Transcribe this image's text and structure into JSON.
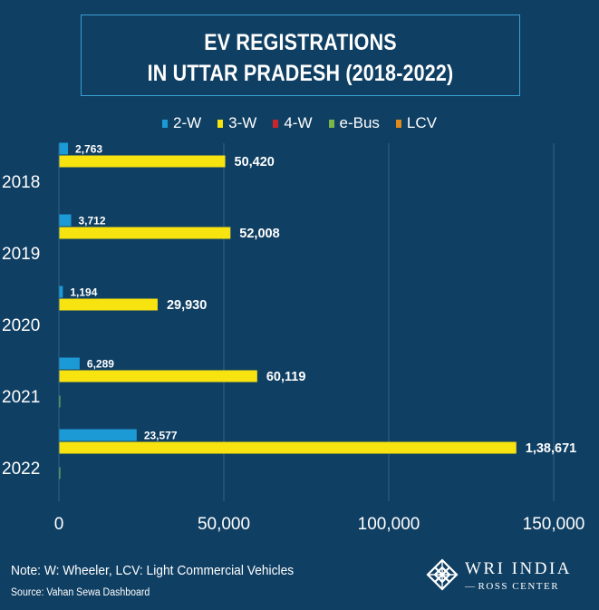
{
  "title": {
    "line1": "EV REGISTRATIONS",
    "line2": "IN UTTAR PRADESH (2018-2022)"
  },
  "legend": [
    {
      "label": "2-W",
      "color": "#1b9ad6"
    },
    {
      "label": "3-W",
      "color": "#f7e30f"
    },
    {
      "label": "4-W",
      "color": "#c8252c"
    },
    {
      "label": "e-Bus",
      "color": "#7ab648"
    },
    {
      "label": "LCV",
      "color": "#e08a1e"
    }
  ],
  "chart_data": {
    "type": "bar",
    "orientation": "horizontal",
    "title": "EV REGISTRATIONS IN UTTAR PRADESH (2018-2022)",
    "categories": [
      "2018",
      "2019",
      "2020",
      "2021",
      "2022"
    ],
    "series": [
      {
        "name": "2-W",
        "values": [
          2763,
          3712,
          1194,
          6289,
          23577
        ],
        "labels": [
          "2,763",
          "3,712",
          "1,194",
          "6,289",
          "23,577"
        ]
      },
      {
        "name": "3-W",
        "values": [
          50420,
          52008,
          29930,
          60119,
          138671
        ],
        "labels": [
          "50,420",
          "52,008",
          "29,930",
          "60,119",
          "1,38,671"
        ]
      },
      {
        "name": "4-W",
        "values": [
          0,
          0,
          0,
          0,
          0
        ]
      },
      {
        "name": "e-Bus",
        "values": [
          0,
          0,
          0,
          200,
          400
        ]
      },
      {
        "name": "LCV",
        "values": [
          0,
          0,
          0,
          0,
          0
        ]
      }
    ],
    "xlim": [
      0,
      150000
    ],
    "xticks": [
      0,
      50000,
      100000,
      150000
    ],
    "xtick_labels": [
      "0",
      "50,000",
      "100,000",
      "150,000"
    ],
    "grid": true,
    "legend_position": "top"
  },
  "footer": {
    "note": "Note: W: Wheeler, LCV: Light Commercial Vehicles",
    "source": "Source: Vahan Sewa Dashboard"
  },
  "brand": {
    "name": "WRI INDIA",
    "sub": "ROSS CENTER"
  }
}
